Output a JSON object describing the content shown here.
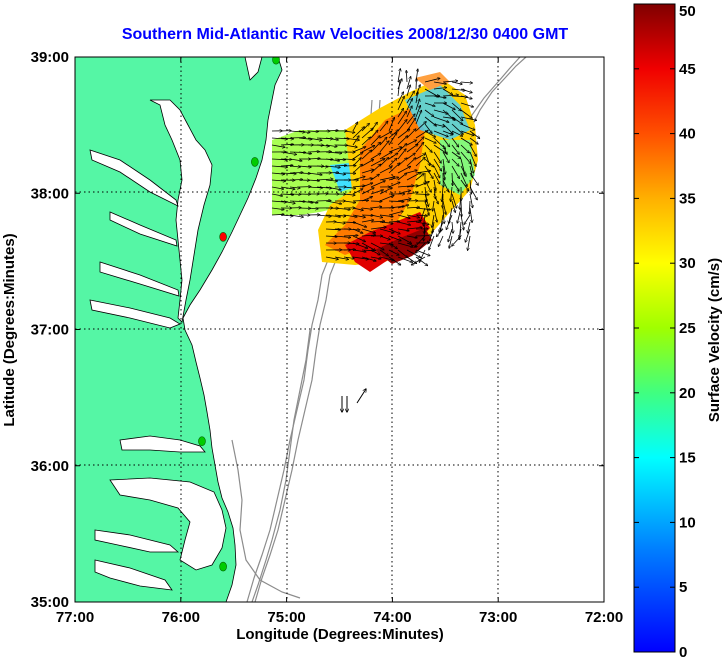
{
  "chart_data": {
    "type": "map-vector-field",
    "title": "Southern Mid-Atlantic Raw Velocities 2008/12/30 0400 GMT",
    "xlabel": "Longitude (Degrees:Minutes)",
    "ylabel": "Latitude (Degrees:Minutes)",
    "xlim": [
      -77,
      -72
    ],
    "ylim": [
      35,
      39
    ],
    "x_ticks": [
      {
        "value": -77,
        "label": "77:00"
      },
      {
        "value": -76,
        "label": "76:00"
      },
      {
        "value": -75,
        "label": "75:00"
      },
      {
        "value": -74,
        "label": "74:00"
      },
      {
        "value": -73,
        "label": "73:00"
      },
      {
        "value": -72,
        "label": "72:00"
      }
    ],
    "y_ticks": [
      {
        "value": 35,
        "label": "35:00"
      },
      {
        "value": 36,
        "label": "36:00"
      },
      {
        "value": 37,
        "label": "37:00"
      },
      {
        "value": 38,
        "label": "38:00"
      },
      {
        "value": 39,
        "label": "39:00"
      }
    ],
    "colorbar": {
      "label": "Surface Velocity (cm/s)",
      "range": [
        0,
        50
      ],
      "ticks": [
        0,
        5,
        10,
        15,
        20,
        25,
        30,
        35,
        40,
        45,
        50
      ]
    },
    "velocity_field": {
      "lon_range": [
        -75.1,
        -73.2
      ],
      "lat_range": [
        37.5,
        38.85
      ],
      "speed_range_cm_s": [
        5,
        50
      ]
    },
    "stations": [
      {
        "lon": -75.1,
        "lat": 38.98,
        "color": "#00cc00"
      },
      {
        "lon": -75.3,
        "lat": 38.23,
        "color": "#00cc00"
      },
      {
        "lon": -75.6,
        "lat": 37.68,
        "color": "#ff0000"
      },
      {
        "lon": -75.8,
        "lat": 36.18,
        "color": "#00cc00"
      },
      {
        "lon": -75.6,
        "lat": 35.26,
        "color": "#00cc00"
      }
    ],
    "legend_arrows_position": "lower-center",
    "colors": {
      "land": "#55f6a5",
      "title": "#0000ff",
      "isobath": "#8c8c8c"
    }
  }
}
